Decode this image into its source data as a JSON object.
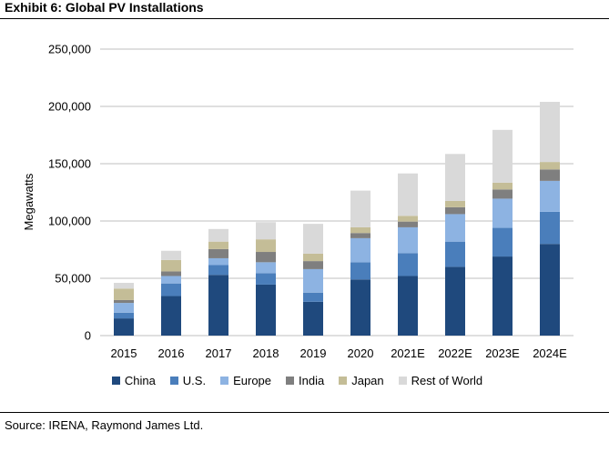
{
  "title": "Exhibit 6: Global PV Installations",
  "source": "Source: IRENA, Raymond James Ltd.",
  "chart_data": {
    "type": "bar",
    "stacked": true,
    "categories": [
      "2015",
      "2016",
      "2017",
      "2018",
      "2019",
      "2020",
      "2021E",
      "2022E",
      "2023E",
      "2024E"
    ],
    "ylabel": "Megawatts",
    "ylim": [
      0,
      250000
    ],
    "yticks": [
      0,
      50000,
      100000,
      150000,
      200000,
      250000
    ],
    "ytick_labels": [
      "0",
      "50,000",
      "100,000",
      "150,000",
      "200,000",
      "250,000"
    ],
    "grid": true,
    "legend_position": "bottom",
    "series": [
      {
        "name": "China",
        "color": "#1f497d",
        "values": [
          15000,
          34500,
          53000,
          44500,
          29500,
          49000,
          52000,
          60000,
          69000,
          80000
        ]
      },
      {
        "name": "U.S.",
        "color": "#4a7ebb",
        "values": [
          5000,
          11000,
          8500,
          10000,
          8000,
          15000,
          20000,
          22000,
          25000,
          28000
        ]
      },
      {
        "name": "Europe",
        "color": "#8db3e2",
        "values": [
          8500,
          6500,
          6000,
          9500,
          20500,
          21000,
          22500,
          24000,
          25500,
          27000
        ]
      },
      {
        "name": "India",
        "color": "#7f7f7f",
        "values": [
          2500,
          4000,
          8000,
          9000,
          7000,
          4500,
          5000,
          6000,
          8000,
          10000
        ]
      },
      {
        "name": "Japan",
        "color": "#c4bd97",
        "values": [
          10000,
          10000,
          6500,
          11000,
          6500,
          5000,
          5000,
          5500,
          6000,
          6500
        ]
      },
      {
        "name": "Rest of World",
        "color": "#d9d9d9",
        "values": [
          5000,
          8000,
          11000,
          15000,
          26000,
          32000,
          37000,
          41000,
          46000,
          52500
        ]
      }
    ]
  }
}
